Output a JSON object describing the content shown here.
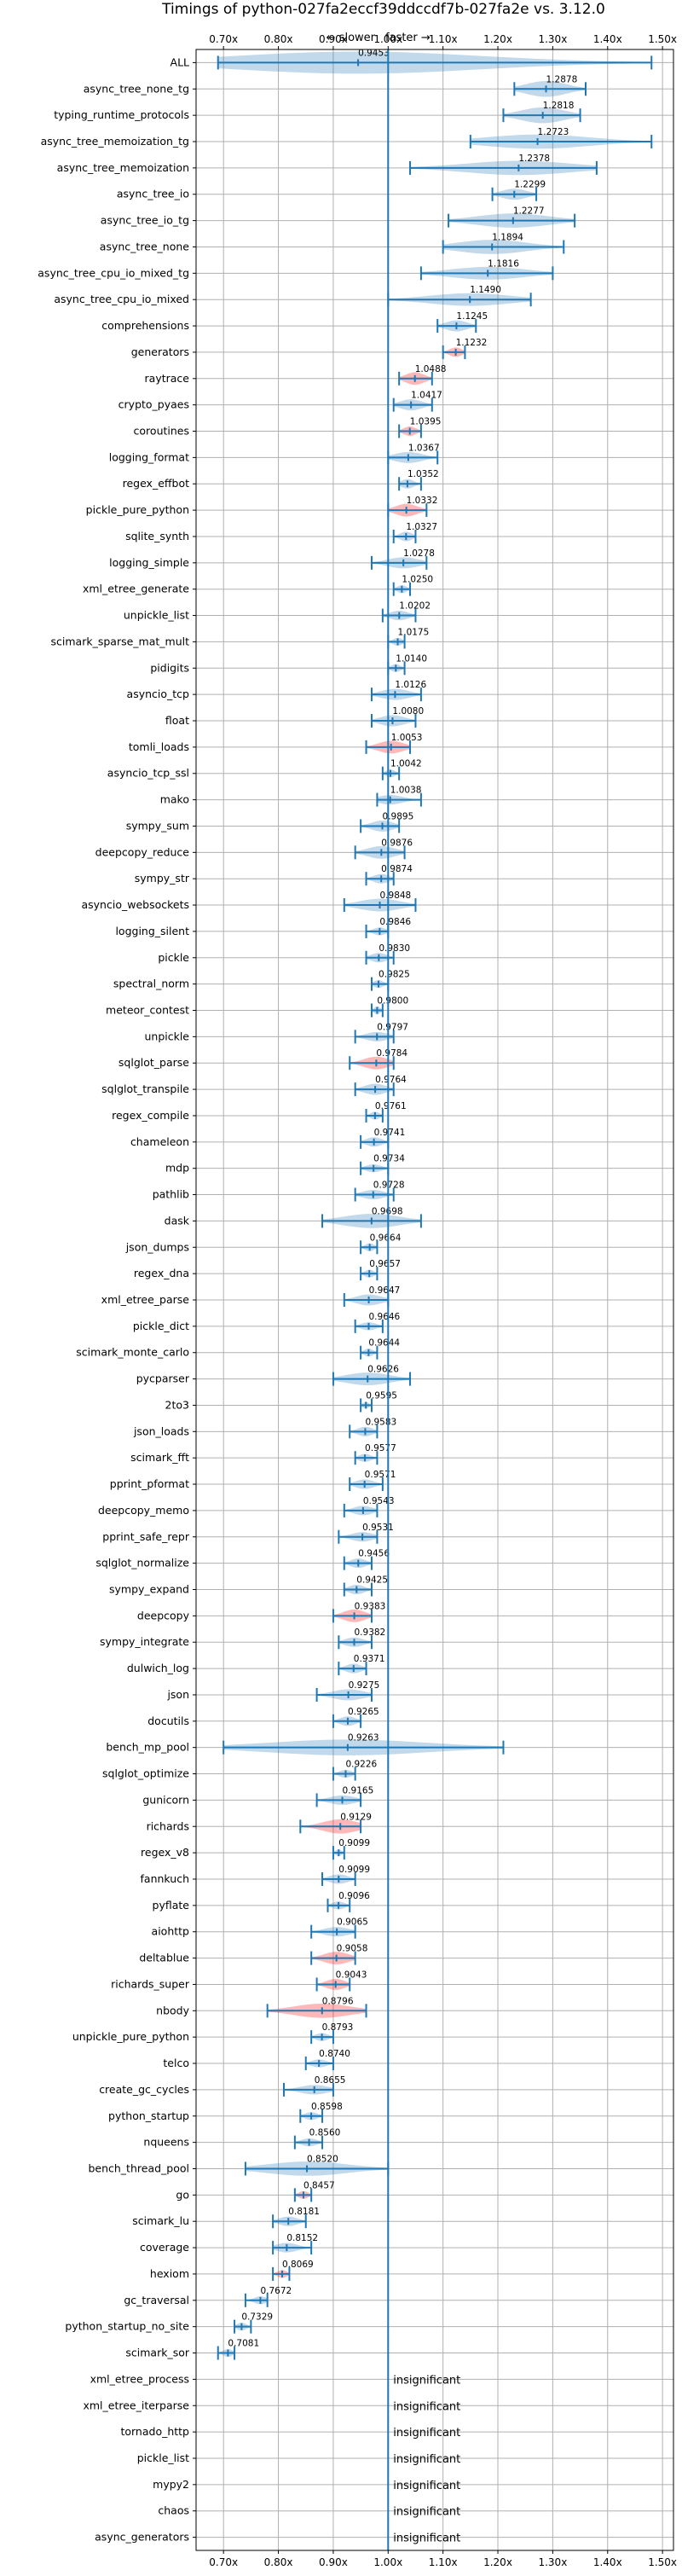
{
  "chart_data": {
    "type": "violin",
    "title": "Timings of python-027fa2eccf39ddccdf7b-027fa2e vs. 3.12.0",
    "subtitle_left": "← slower",
    "subtitle_right": "faster →",
    "xlim": [
      0.65,
      1.52
    ],
    "xticks": [
      0.7,
      0.8,
      0.9,
      1.0,
      1.1,
      1.2,
      1.3,
      1.4,
      1.5
    ],
    "xtick_labels": [
      "0.70x",
      "0.80x",
      "0.90x",
      "1.00x",
      "1.10x",
      "1.20x",
      "1.30x",
      "1.40x",
      "1.50x"
    ],
    "grid": true,
    "reference_x": 1.0,
    "insignificant_label": "insignificant",
    "benchmarks": [
      {
        "name": "ALL",
        "value": "0.9453",
        "center": 0.9453,
        "min": 0.69,
        "max": 1.48,
        "width": 0.14,
        "color": "blue"
      },
      {
        "name": "async_tree_none_tg",
        "value": "1.2878",
        "center": 1.2878,
        "min": 1.23,
        "max": 1.36,
        "width": 0.1,
        "color": "blue"
      },
      {
        "name": "typing_runtime_protocols",
        "value": "1.2818",
        "center": 1.2818,
        "min": 1.21,
        "max": 1.35,
        "width": 0.1,
        "color": "blue"
      },
      {
        "name": "async_tree_memoization_tg",
        "value": "1.2723",
        "center": 1.2723,
        "min": 1.15,
        "max": 1.48,
        "width": 0.09,
        "color": "blue"
      },
      {
        "name": "async_tree_memoization",
        "value": "1.2378",
        "center": 1.2378,
        "min": 1.04,
        "max": 1.38,
        "width": 0.09,
        "color": "blue"
      },
      {
        "name": "async_tree_io",
        "value": "1.2299",
        "center": 1.2299,
        "min": 1.19,
        "max": 1.27,
        "width": 0.07,
        "color": "blue"
      },
      {
        "name": "async_tree_io_tg",
        "value": "1.2277",
        "center": 1.2277,
        "min": 1.11,
        "max": 1.34,
        "width": 0.09,
        "color": "blue"
      },
      {
        "name": "async_tree_none",
        "value": "1.1894",
        "center": 1.1894,
        "min": 1.1,
        "max": 1.32,
        "width": 0.09,
        "color": "blue"
      },
      {
        "name": "async_tree_cpu_io_mixed_tg",
        "value": "1.1816",
        "center": 1.1816,
        "min": 1.06,
        "max": 1.3,
        "width": 0.08,
        "color": "blue"
      },
      {
        "name": "async_tree_cpu_io_mixed",
        "value": "1.1490",
        "center": 1.149,
        "min": 1.0,
        "max": 1.26,
        "width": 0.08,
        "color": "blue"
      },
      {
        "name": "comprehensions",
        "value": "1.1245",
        "center": 1.1245,
        "min": 1.09,
        "max": 1.16,
        "width": 0.07,
        "color": "blue"
      },
      {
        "name": "generators",
        "value": "1.1232",
        "center": 1.1232,
        "min": 1.1,
        "max": 1.14,
        "width": 0.06,
        "color": "red"
      },
      {
        "name": "raytrace",
        "value": "1.0488",
        "center": 1.0488,
        "min": 1.02,
        "max": 1.08,
        "width": 0.08,
        "color": "red"
      },
      {
        "name": "crypto_pyaes",
        "value": "1.0417",
        "center": 1.0417,
        "min": 1.01,
        "max": 1.08,
        "width": 0.07,
        "color": "blue"
      },
      {
        "name": "coroutines",
        "value": "1.0395",
        "center": 1.0395,
        "min": 1.02,
        "max": 1.06,
        "width": 0.06,
        "color": "red"
      },
      {
        "name": "logging_format",
        "value": "1.0367",
        "center": 1.0367,
        "min": 1.0,
        "max": 1.09,
        "width": 0.07,
        "color": "blue"
      },
      {
        "name": "regex_effbot",
        "value": "1.0352",
        "center": 1.0352,
        "min": 1.02,
        "max": 1.06,
        "width": 0.06,
        "color": "blue"
      },
      {
        "name": "pickle_pure_python",
        "value": "1.0332",
        "center": 1.0332,
        "min": 1.0,
        "max": 1.07,
        "width": 0.08,
        "color": "red"
      },
      {
        "name": "sqlite_synth",
        "value": "1.0327",
        "center": 1.0327,
        "min": 1.01,
        "max": 1.05,
        "width": 0.06,
        "color": "blue"
      },
      {
        "name": "logging_simple",
        "value": "1.0278",
        "center": 1.0278,
        "min": 0.97,
        "max": 1.07,
        "width": 0.07,
        "color": "blue"
      },
      {
        "name": "xml_etree_generate",
        "value": "1.0250",
        "center": 1.025,
        "min": 1.01,
        "max": 1.04,
        "width": 0.05,
        "color": "blue"
      },
      {
        "name": "unpickle_list",
        "value": "1.0202",
        "center": 1.0202,
        "min": 0.99,
        "max": 1.05,
        "width": 0.06,
        "color": "blue"
      },
      {
        "name": "scimark_sparse_mat_mult",
        "value": "1.0175",
        "center": 1.0175,
        "min": 1.0,
        "max": 1.03,
        "width": 0.05,
        "color": "blue"
      },
      {
        "name": "pidigits",
        "value": "1.0140",
        "center": 1.014,
        "min": 1.0,
        "max": 1.03,
        "width": 0.05,
        "color": "blue"
      },
      {
        "name": "asyncio_tcp",
        "value": "1.0126",
        "center": 1.0126,
        "min": 0.97,
        "max": 1.06,
        "width": 0.07,
        "color": "blue"
      },
      {
        "name": "float",
        "value": "1.0080",
        "center": 1.008,
        "min": 0.97,
        "max": 1.05,
        "width": 0.07,
        "color": "blue"
      },
      {
        "name": "tomli_loads",
        "value": "1.0053",
        "center": 1.0053,
        "min": 0.96,
        "max": 1.04,
        "width": 0.08,
        "color": "red"
      },
      {
        "name": "asyncio_tcp_ssl",
        "value": "1.0042",
        "center": 1.0042,
        "min": 0.99,
        "max": 1.02,
        "width": 0.05,
        "color": "blue"
      },
      {
        "name": "mako",
        "value": "1.0038",
        "center": 1.0038,
        "min": 0.98,
        "max": 1.06,
        "width": 0.06,
        "color": "blue"
      },
      {
        "name": "sympy_sum",
        "value": "0.9895",
        "center": 0.9895,
        "min": 0.95,
        "max": 1.02,
        "width": 0.07,
        "color": "blue"
      },
      {
        "name": "deepcopy_reduce",
        "value": "0.9876",
        "center": 0.9876,
        "min": 0.94,
        "max": 1.03,
        "width": 0.08,
        "color": "blue"
      },
      {
        "name": "sympy_str",
        "value": "0.9874",
        "center": 0.9874,
        "min": 0.96,
        "max": 1.01,
        "width": 0.06,
        "color": "blue"
      },
      {
        "name": "asyncio_websockets",
        "value": "0.9848",
        "center": 0.9848,
        "min": 0.92,
        "max": 1.05,
        "width": 0.08,
        "color": "blue"
      },
      {
        "name": "logging_silent",
        "value": "0.9846",
        "center": 0.9846,
        "min": 0.96,
        "max": 1.0,
        "width": 0.05,
        "color": "blue"
      },
      {
        "name": "pickle",
        "value": "0.9830",
        "center": 0.983,
        "min": 0.96,
        "max": 1.01,
        "width": 0.06,
        "color": "blue"
      },
      {
        "name": "spectral_norm",
        "value": "0.9825",
        "center": 0.9825,
        "min": 0.97,
        "max": 1.0,
        "width": 0.05,
        "color": "blue"
      },
      {
        "name": "meteor_contest",
        "value": "0.9800",
        "center": 0.98,
        "min": 0.97,
        "max": 0.99,
        "width": 0.05,
        "color": "blue"
      },
      {
        "name": "unpickle",
        "value": "0.9797",
        "center": 0.9797,
        "min": 0.94,
        "max": 1.01,
        "width": 0.06,
        "color": "blue"
      },
      {
        "name": "sqlglot_parse",
        "value": "0.9784",
        "center": 0.9784,
        "min": 0.93,
        "max": 1.01,
        "width": 0.08,
        "color": "red"
      },
      {
        "name": "sqlglot_transpile",
        "value": "0.9764",
        "center": 0.9764,
        "min": 0.94,
        "max": 1.01,
        "width": 0.07,
        "color": "blue"
      },
      {
        "name": "regex_compile",
        "value": "0.9761",
        "center": 0.9761,
        "min": 0.96,
        "max": 0.99,
        "width": 0.05,
        "color": "blue"
      },
      {
        "name": "chameleon",
        "value": "0.9741",
        "center": 0.9741,
        "min": 0.95,
        "max": 1.0,
        "width": 0.06,
        "color": "blue"
      },
      {
        "name": "mdp",
        "value": "0.9734",
        "center": 0.9734,
        "min": 0.95,
        "max": 1.0,
        "width": 0.05,
        "color": "blue"
      },
      {
        "name": "pathlib",
        "value": "0.9728",
        "center": 0.9728,
        "min": 0.94,
        "max": 1.01,
        "width": 0.06,
        "color": "blue"
      },
      {
        "name": "dask",
        "value": "0.9698",
        "center": 0.9698,
        "min": 0.88,
        "max": 1.06,
        "width": 0.09,
        "color": "blue"
      },
      {
        "name": "json_dumps",
        "value": "0.9664",
        "center": 0.9664,
        "min": 0.95,
        "max": 0.98,
        "width": 0.05,
        "color": "blue"
      },
      {
        "name": "regex_dna",
        "value": "0.9657",
        "center": 0.9657,
        "min": 0.95,
        "max": 0.98,
        "width": 0.05,
        "color": "blue"
      },
      {
        "name": "xml_etree_parse",
        "value": "0.9647",
        "center": 0.9647,
        "min": 0.92,
        "max": 1.0,
        "width": 0.07,
        "color": "blue"
      },
      {
        "name": "pickle_dict",
        "value": "0.9646",
        "center": 0.9646,
        "min": 0.94,
        "max": 0.99,
        "width": 0.05,
        "color": "blue"
      },
      {
        "name": "scimark_monte_carlo",
        "value": "0.9644",
        "center": 0.9644,
        "min": 0.95,
        "max": 0.98,
        "width": 0.05,
        "color": "blue"
      },
      {
        "name": "pycparser",
        "value": "0.9626",
        "center": 0.9626,
        "min": 0.9,
        "max": 1.04,
        "width": 0.08,
        "color": "blue"
      },
      {
        "name": "2to3",
        "value": "0.9595",
        "center": 0.9595,
        "min": 0.95,
        "max": 0.97,
        "width": 0.04,
        "color": "blue"
      },
      {
        "name": "json_loads",
        "value": "0.9583",
        "center": 0.9583,
        "min": 0.93,
        "max": 0.98,
        "width": 0.06,
        "color": "blue"
      },
      {
        "name": "scimark_fft",
        "value": "0.9577",
        "center": 0.9577,
        "min": 0.94,
        "max": 0.98,
        "width": 0.05,
        "color": "blue"
      },
      {
        "name": "pprint_pformat",
        "value": "0.9571",
        "center": 0.9571,
        "min": 0.93,
        "max": 0.99,
        "width": 0.06,
        "color": "blue"
      },
      {
        "name": "deepcopy_memo",
        "value": "0.9543",
        "center": 0.9543,
        "min": 0.92,
        "max": 0.98,
        "width": 0.06,
        "color": "blue"
      },
      {
        "name": "pprint_safe_repr",
        "value": "0.9531",
        "center": 0.9531,
        "min": 0.91,
        "max": 0.98,
        "width": 0.06,
        "color": "blue"
      },
      {
        "name": "sqlglot_normalize",
        "value": "0.9456",
        "center": 0.9456,
        "min": 0.92,
        "max": 0.97,
        "width": 0.06,
        "color": "blue"
      },
      {
        "name": "sympy_expand",
        "value": "0.9425",
        "center": 0.9425,
        "min": 0.92,
        "max": 0.97,
        "width": 0.06,
        "color": "blue"
      },
      {
        "name": "deepcopy",
        "value": "0.9383",
        "center": 0.9383,
        "min": 0.9,
        "max": 0.97,
        "width": 0.08,
        "color": "red"
      },
      {
        "name": "sympy_integrate",
        "value": "0.9382",
        "center": 0.9382,
        "min": 0.91,
        "max": 0.97,
        "width": 0.06,
        "color": "blue"
      },
      {
        "name": "dulwich_log",
        "value": "0.9371",
        "center": 0.9371,
        "min": 0.91,
        "max": 0.96,
        "width": 0.06,
        "color": "blue"
      },
      {
        "name": "json",
        "value": "0.9275",
        "center": 0.9275,
        "min": 0.87,
        "max": 0.97,
        "width": 0.07,
        "color": "blue"
      },
      {
        "name": "docutils",
        "value": "0.9265",
        "center": 0.9265,
        "min": 0.9,
        "max": 0.95,
        "width": 0.06,
        "color": "blue"
      },
      {
        "name": "bench_mp_pool",
        "value": "0.9263",
        "center": 0.9263,
        "min": 0.7,
        "max": 1.21,
        "width": 0.1,
        "color": "blue"
      },
      {
        "name": "sqlglot_optimize",
        "value": "0.9226",
        "center": 0.9226,
        "min": 0.9,
        "max": 0.94,
        "width": 0.05,
        "color": "blue"
      },
      {
        "name": "gunicorn",
        "value": "0.9165",
        "center": 0.9165,
        "min": 0.87,
        "max": 0.95,
        "width": 0.06,
        "color": "blue"
      },
      {
        "name": "richards",
        "value": "0.9129",
        "center": 0.9129,
        "min": 0.84,
        "max": 0.95,
        "width": 0.09,
        "color": "red"
      },
      {
        "name": "regex_v8",
        "value": "0.9099",
        "center": 0.9099,
        "min": 0.9,
        "max": 0.92,
        "width": 0.04,
        "color": "blue"
      },
      {
        "name": "fannkuch",
        "value": "0.9099",
        "center": 0.9099,
        "min": 0.88,
        "max": 0.94,
        "width": 0.06,
        "color": "blue"
      },
      {
        "name": "pyflate",
        "value": "0.9096",
        "center": 0.9096,
        "min": 0.89,
        "max": 0.93,
        "width": 0.05,
        "color": "blue"
      },
      {
        "name": "aiohttp",
        "value": "0.9065",
        "center": 0.9065,
        "min": 0.86,
        "max": 0.94,
        "width": 0.06,
        "color": "blue"
      },
      {
        "name": "deltablue",
        "value": "0.9058",
        "center": 0.9058,
        "min": 0.86,
        "max": 0.94,
        "width": 0.08,
        "color": "red"
      },
      {
        "name": "richards_super",
        "value": "0.9043",
        "center": 0.9043,
        "min": 0.87,
        "max": 0.93,
        "width": 0.07,
        "color": "red"
      },
      {
        "name": "nbody",
        "value": "0.8796",
        "center": 0.8796,
        "min": 0.78,
        "max": 0.96,
        "width": 0.09,
        "color": "red"
      },
      {
        "name": "unpickle_pure_python",
        "value": "0.8793",
        "center": 0.8793,
        "min": 0.86,
        "max": 0.9,
        "width": 0.05,
        "color": "blue"
      },
      {
        "name": "telco",
        "value": "0.8740",
        "center": 0.874,
        "min": 0.85,
        "max": 0.9,
        "width": 0.05,
        "color": "blue"
      },
      {
        "name": "create_gc_cycles",
        "value": "0.8655",
        "center": 0.8655,
        "min": 0.81,
        "max": 0.9,
        "width": 0.06,
        "color": "blue"
      },
      {
        "name": "python_startup",
        "value": "0.8598",
        "center": 0.8598,
        "min": 0.84,
        "max": 0.88,
        "width": 0.05,
        "color": "blue"
      },
      {
        "name": "nqueens",
        "value": "0.8560",
        "center": 0.856,
        "min": 0.83,
        "max": 0.88,
        "width": 0.05,
        "color": "blue"
      },
      {
        "name": "bench_thread_pool",
        "value": "0.8520",
        "center": 0.852,
        "min": 0.74,
        "max": 1.0,
        "width": 0.09,
        "color": "blue"
      },
      {
        "name": "go",
        "value": "0.8457",
        "center": 0.8457,
        "min": 0.83,
        "max": 0.86,
        "width": 0.05,
        "color": "red"
      },
      {
        "name": "scimark_lu",
        "value": "0.8181",
        "center": 0.8181,
        "min": 0.79,
        "max": 0.85,
        "width": 0.06,
        "color": "blue"
      },
      {
        "name": "coverage",
        "value": "0.8152",
        "center": 0.8152,
        "min": 0.79,
        "max": 0.86,
        "width": 0.06,
        "color": "blue"
      },
      {
        "name": "hexiom",
        "value": "0.8069",
        "center": 0.8069,
        "min": 0.79,
        "max": 0.82,
        "width": 0.05,
        "color": "red"
      },
      {
        "name": "gc_traversal",
        "value": "0.7672",
        "center": 0.7672,
        "min": 0.74,
        "max": 0.78,
        "width": 0.05,
        "color": "blue"
      },
      {
        "name": "python_startup_no_site",
        "value": "0.7329",
        "center": 0.7329,
        "min": 0.72,
        "max": 0.75,
        "width": 0.05,
        "color": "blue"
      },
      {
        "name": "scimark_sor",
        "value": "0.7081",
        "center": 0.7081,
        "min": 0.69,
        "max": 0.72,
        "width": 0.05,
        "color": "blue"
      },
      {
        "name": "xml_etree_process",
        "value": null,
        "insignificant": true
      },
      {
        "name": "xml_etree_iterparse",
        "value": null,
        "insignificant": true
      },
      {
        "name": "tornado_http",
        "value": null,
        "insignificant": true
      },
      {
        "name": "pickle_list",
        "value": null,
        "insignificant": true
      },
      {
        "name": "mypy2",
        "value": null,
        "insignificant": true
      },
      {
        "name": "chaos",
        "value": null,
        "insignificant": true
      },
      {
        "name": "async_generators",
        "value": null,
        "insignificant": true
      }
    ]
  },
  "colors": {
    "faster": "#1f77b4",
    "slower": "#ff0000",
    "line": "#1f77b4",
    "grid": "#b0b0b0"
  }
}
